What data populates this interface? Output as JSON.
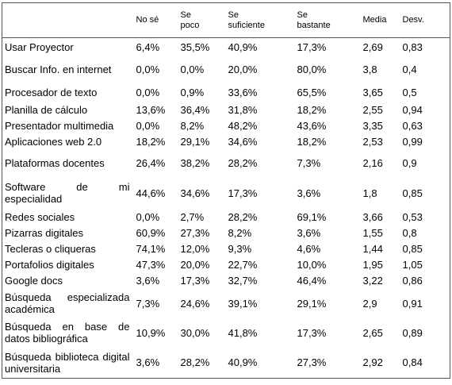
{
  "table": {
    "header": [
      "No sé",
      "Se poco",
      "Se suficiente",
      "Se bastante",
      "Media",
      "Desv."
    ],
    "rows": [
      [
        "Usar Proyector",
        "6,4%",
        "35,5%",
        "40,9%",
        "17,3%",
        "2,69",
        "0,83"
      ],
      [
        "Buscar Info. en internet",
        "0,0%",
        "0,0%",
        "20,0%",
        "80,0%",
        "3,8",
        "0,4"
      ],
      [
        "Procesador de texto",
        "0,0%",
        "0,9%",
        "33,6%",
        "65,5%",
        "3,65",
        "0,5"
      ],
      [
        "Planilla de cálculo",
        "13,6%",
        "36,4%",
        "31,8%",
        "18,2%",
        "2,55",
        "0,94"
      ],
      [
        "Presentador multimedia",
        "0,0%",
        "8,2%",
        "48,2%",
        "43,6%",
        "3,35",
        "0,63"
      ],
      [
        "Aplicaciones web 2.0",
        "18,2%",
        "29,1%",
        "34,6%",
        "18,2%",
        "2,53",
        "0,99"
      ],
      [
        "Plataformas docentes",
        "26,4%",
        "38,2%",
        "28,2%",
        "7,3%",
        "2,16",
        "0,9"
      ],
      [
        "Software de mi especialidad",
        "44,6%",
        "34,6%",
        "17,3%",
        "3,6%",
        "1,8",
        "0,85"
      ],
      [
        "Redes sociales",
        "0,0%",
        "2,7%",
        "28,2%",
        "69,1%",
        "3,66",
        "0,53"
      ],
      [
        "Pizarras digitales",
        "60,9%",
        "27,3%",
        "8,2%",
        "3,6%",
        "1,55",
        "0,8"
      ],
      [
        "Tecleras o cliqueras",
        "74,1%",
        "12,0%",
        "9,3%",
        "4,6%",
        "1,44",
        "0,85"
      ],
      [
        "Portafolios digitales",
        "47,3%",
        "20,0%",
        "22,7%",
        "10,0%",
        "1,95",
        "1,05"
      ],
      [
        "Google docs",
        "3,6%",
        "17,3%",
        "32,7%",
        "46,4%",
        "3,22",
        "0,86"
      ],
      [
        "Búsqueda especializada académica",
        "7,3%",
        "24,6%",
        "39,1%",
        "29,1%",
        "2,9",
        "0,91"
      ],
      [
        "Búsqueda en base de datos bibliográfica",
        "10,9%",
        "30,0%",
        "41,8%",
        "17,3%",
        "2,65",
        "0,89"
      ],
      [
        "Búsqueda biblioteca digital universitaria",
        "3,6%",
        "28,2%",
        "40,9%",
        "27,3%",
        "2,92",
        "0,84"
      ]
    ]
  }
}
